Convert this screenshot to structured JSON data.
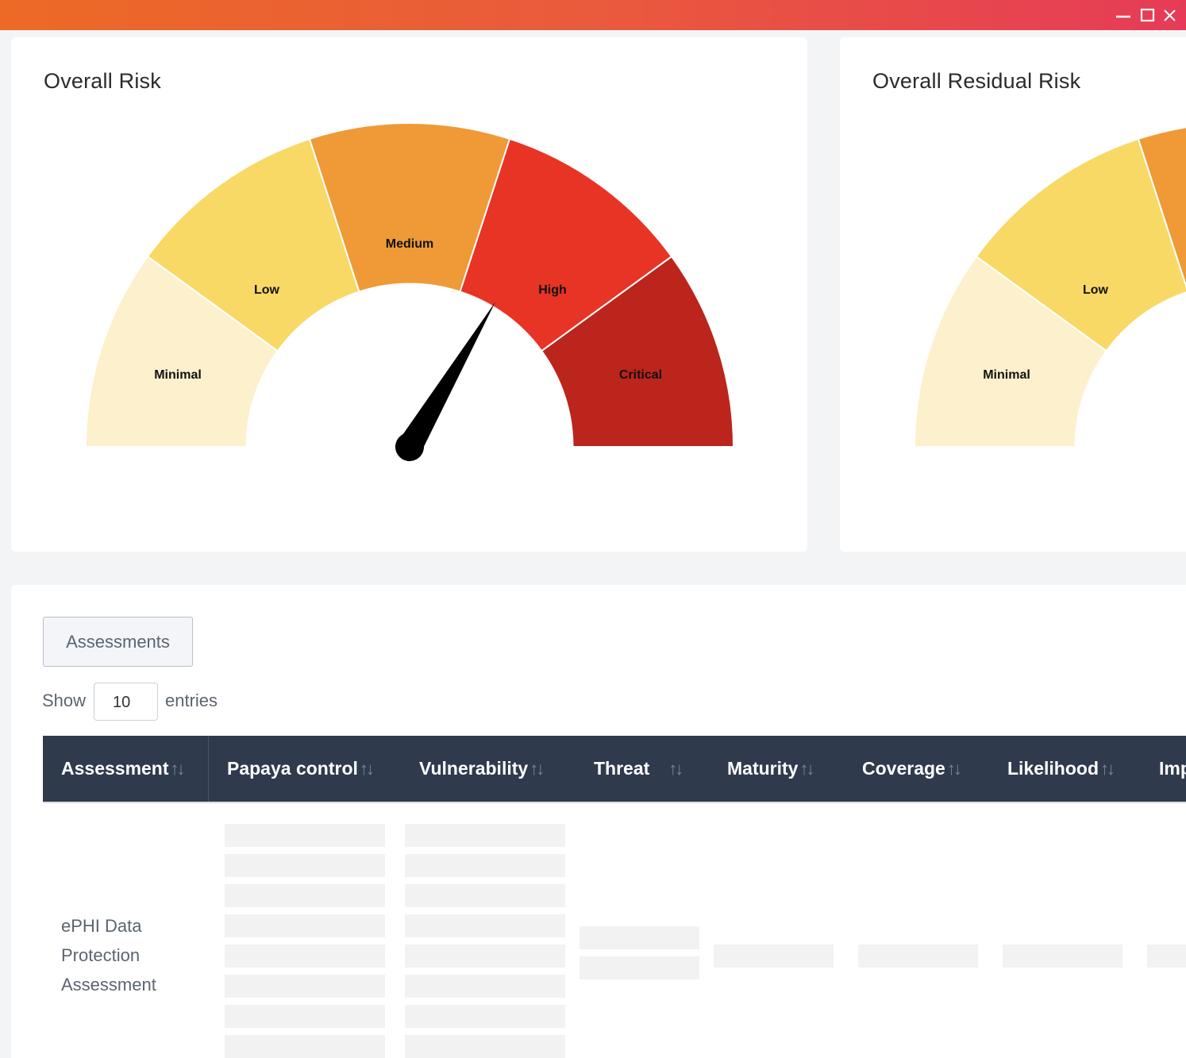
{
  "window": {
    "controls": [
      "minimize-icon",
      "maximize-icon",
      "close-icon"
    ],
    "gradient": [
      "#ec6a26",
      "#e63b57"
    ]
  },
  "overall_risk": {
    "title": "Overall Risk",
    "segments": [
      "Minimal",
      "Low",
      "Medium",
      "High",
      "Critical"
    ],
    "colors": [
      "#fdf0cc",
      "#f8d966",
      "#ef9a37",
      "#e83425",
      "#bb251c"
    ],
    "needle_value_fraction": 0.67
  },
  "overall_residual_risk": {
    "title": "Overall Residual Risk",
    "segments": [
      "Minimal",
      "Low"
    ]
  },
  "assessments_button": "Assessments",
  "length_menu": {
    "show": "Show",
    "value": "10",
    "entries": "entries"
  },
  "table": {
    "headers": [
      "Assessment",
      "Papaya control",
      "Vulnerability",
      "Threat",
      "Maturity",
      "Coverage",
      "Likelihood",
      "Imp"
    ],
    "sort_icon": "↑↓",
    "rows": [
      {
        "assessment": [
          "ePHI Data",
          "Protection",
          "Assessment"
        ]
      }
    ]
  }
}
